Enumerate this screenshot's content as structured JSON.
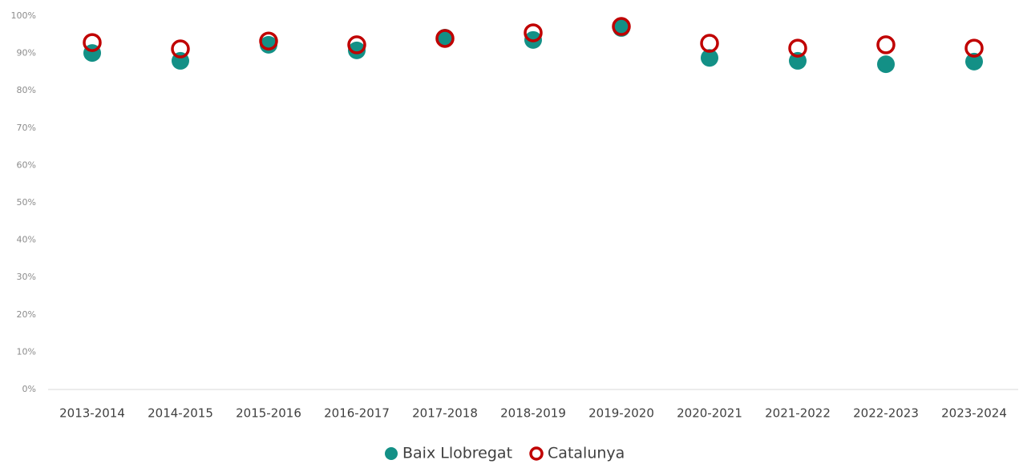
{
  "chart_data": {
    "type": "dot",
    "categories": [
      "2013-2014",
      "2014-2015",
      "2015-2016",
      "2016-2017",
      "2017-2018",
      "2018-2019",
      "2019-2020",
      "2020-2021",
      "2021-2022",
      "2022-2023",
      "2023-2024"
    ],
    "series": [
      {
        "name": "Baix Llobregat",
        "color": "#139086",
        "marker": "filled",
        "values": [
          90.1,
          88.0,
          92.3,
          90.8,
          94.2,
          93.6,
          96.8,
          88.8,
          88.0,
          87.1,
          87.8
        ]
      },
      {
        "name": "Catalunya",
        "color": "#c00000",
        "marker": "hollow",
        "values": [
          92.9,
          91.2,
          93.3,
          92.3,
          94.0,
          95.5,
          97.2,
          92.7,
          91.4,
          92.3,
          91.4
        ]
      }
    ],
    "ylim": [
      0,
      100
    ],
    "yticks": [
      {
        "value": 0,
        "label": "0%"
      },
      {
        "value": 10,
        "label": "10%"
      },
      {
        "value": 20,
        "label": "20%"
      },
      {
        "value": 30,
        "label": "30%"
      },
      {
        "value": 40,
        "label": "40%"
      },
      {
        "value": 50,
        "label": "50%"
      },
      {
        "value": 60,
        "label": "60%"
      },
      {
        "value": 70,
        "label": "70%"
      },
      {
        "value": 80,
        "label": "80%"
      },
      {
        "value": 90,
        "label": "90%"
      },
      {
        "value": 100,
        "label": "100%"
      }
    ],
    "legend": "bottom"
  }
}
